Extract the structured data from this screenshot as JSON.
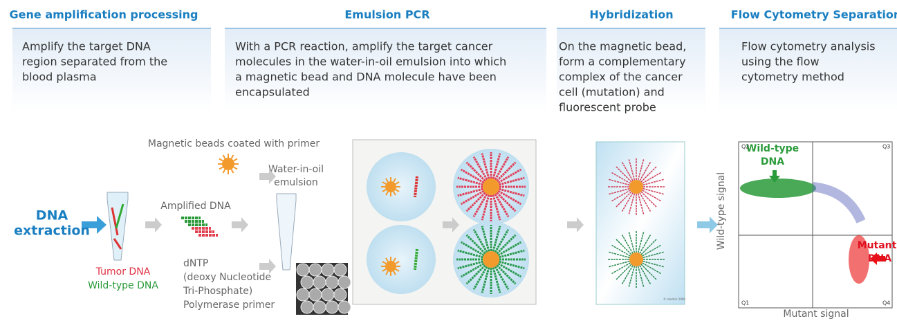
{
  "sections": [
    {
      "title": "Gene amplification processing",
      "lines": [
        "Amplify the target DNA",
        "region separated from the",
        "blood plasma"
      ]
    },
    {
      "title": "Emulsion PCR",
      "lines": [
        "With a PCR reaction, amplify the target cancer",
        "molecules in the water-in-oil emulsion into which",
        "a magnetic bead and DNA molecule have been",
        "encapsulated"
      ]
    },
    {
      "title": "Hybridization",
      "lines": [
        "On the magnetic bead,",
        "form a complementary",
        "complex of the cancer",
        "cell (mutation) and",
        "fluorescent probe"
      ]
    },
    {
      "title": "Flow Cytometry Separation",
      "lines": [
        "Flow cytometry analysis",
        "using the flow",
        "cytometry method"
      ]
    }
  ],
  "diagram": {
    "extraction": [
      "DNA",
      "extraction"
    ],
    "tumor_dna": "Tumor DNA",
    "wild_type_dna": "Wild-type DNA",
    "amplified_dna": "Amplified DNA",
    "beads": "Magnetic beads coated with primer",
    "emulsion": [
      "Water-in-oil",
      "emulsion"
    ],
    "reagents": [
      "dNTP",
      "(deoxy Nucleotide",
      "Tri-Phosphate)",
      "Polymerase primer"
    ],
    "copyright": "© Inostics 2009",
    "plot": {
      "y_label": "Wild-type signal",
      "x_label": "Mutant signal",
      "wild_type": [
        "Wild-type",
        "DNA"
      ],
      "mutant": [
        "Mutant",
        "DNA"
      ],
      "quadrants": [
        "Q1",
        "Q2",
        "Q3",
        "Q4"
      ]
    }
  }
}
